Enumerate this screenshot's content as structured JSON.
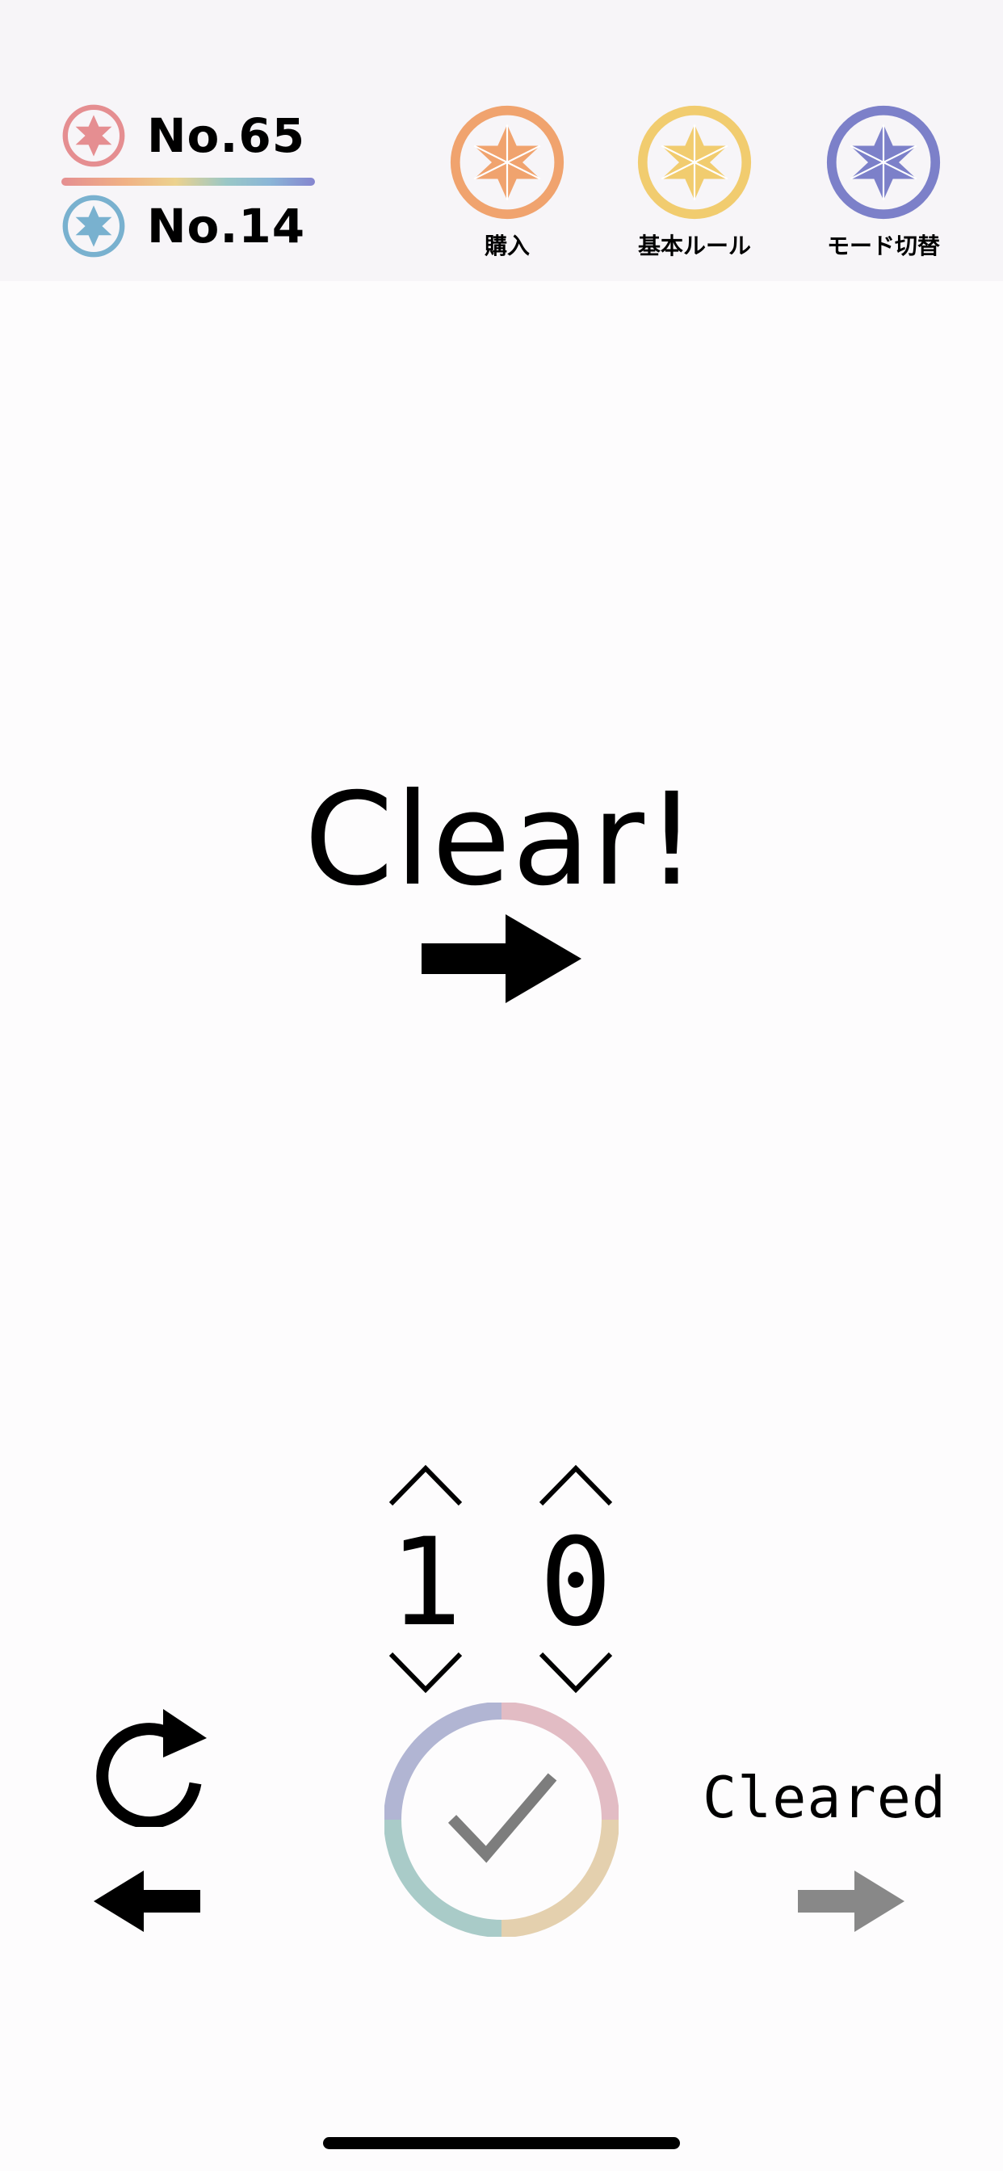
{
  "header": {
    "levels": [
      {
        "text": "No.65",
        "icon": "red-star-emblem-icon",
        "color": "#e58e91"
      },
      {
        "text": "No.14",
        "icon": "blue-star-emblem-icon",
        "color": "#79b1cf"
      }
    ],
    "buttons": [
      {
        "label": "購入",
        "icon": "orange-star-emblem-icon",
        "color": "#f0a36e"
      },
      {
        "label": "基本ルール",
        "icon": "yellow-star-emblem-icon",
        "color": "#f1cc6f"
      },
      {
        "label": "モード切替",
        "icon": "purple-star-emblem-icon",
        "color": "#7c80c9"
      }
    ]
  },
  "main": {
    "status_text": "Clear!",
    "next_icon": "arrow-right-icon"
  },
  "answer": {
    "digits": [
      "1",
      "0"
    ],
    "up_icon": "chevron-up-icon",
    "down_icon": "chevron-down-icon"
  },
  "controls": {
    "reset_icon": "reset-icon",
    "back_icon": "arrow-left-icon",
    "submit_icon": "check-icon",
    "cleared_label": "Cleared",
    "forward_icon": "arrow-right-icon"
  },
  "colors": {
    "background": "#fdfcfd",
    "header_background": "#f7f5f8",
    "text": "#000000",
    "disabled_gray": "#888888"
  }
}
